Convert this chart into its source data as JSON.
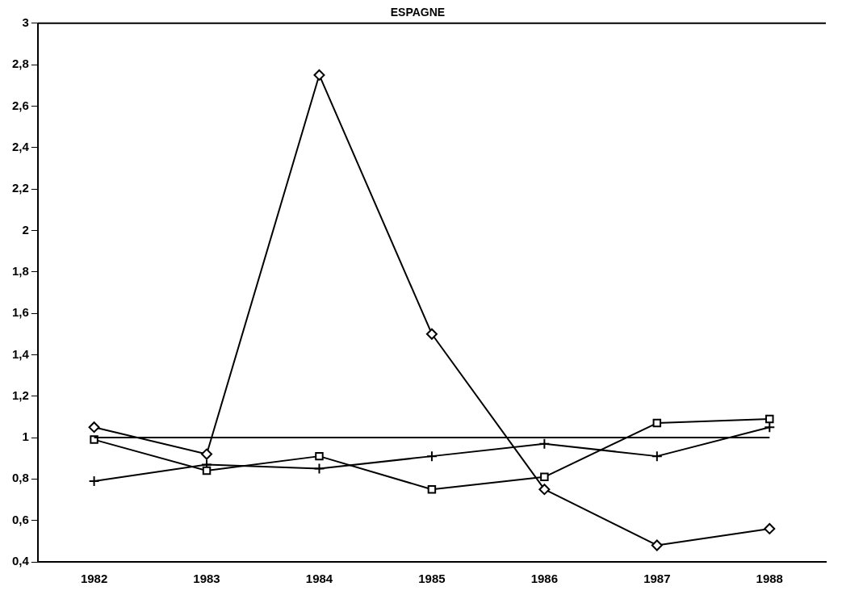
{
  "chart_data": {
    "type": "line",
    "title": "ESPAGNE",
    "categories": [
      "1982",
      "1983",
      "1984",
      "1985",
      "1986",
      "1987",
      "1988"
    ],
    "series": [
      {
        "color": "#000000",
        "marker": "diamond",
        "values": [
          1.05,
          0.92,
          2.75,
          1.5,
          0.75,
          0.48,
          0.56
        ]
      },
      {
        "color": "#000000",
        "marker": "square",
        "values": [
          0.99,
          0.84,
          0.91,
          0.75,
          0.81,
          1.07,
          1.09
        ]
      },
      {
        "color": "#000000",
        "marker": "cross",
        "values": [
          0.79,
          0.87,
          0.85,
          0.91,
          0.97,
          0.91,
          1.05
        ]
      }
    ],
    "ylim": [
      0.4,
      3
    ],
    "yticks": [
      {
        "value": 0.4,
        "label": "0,4"
      },
      {
        "value": 0.6,
        "label": "0,6"
      },
      {
        "value": 0.8,
        "label": "0,8"
      },
      1,
      {
        "value": 1.2,
        "label": "1,2"
      },
      {
        "value": 1.4,
        "label": "1,4"
      },
      {
        "value": 1.6,
        "label": "1,6"
      },
      {
        "value": 1.8,
        "label": "1,8"
      },
      2,
      {
        "value": 2.2,
        "label": "2,2"
      },
      {
        "value": 2.4,
        "label": "2,4"
      },
      {
        "value": 2.6,
        "label": "2,6"
      },
      {
        "value": 2.8,
        "label": "2,8"
      },
      3
    ],
    "ref_lines": [
      {
        "axis": "y",
        "value": 1,
        "color": "#000000"
      }
    ],
    "grid": false,
    "legend": false,
    "line_style": "solid"
  }
}
